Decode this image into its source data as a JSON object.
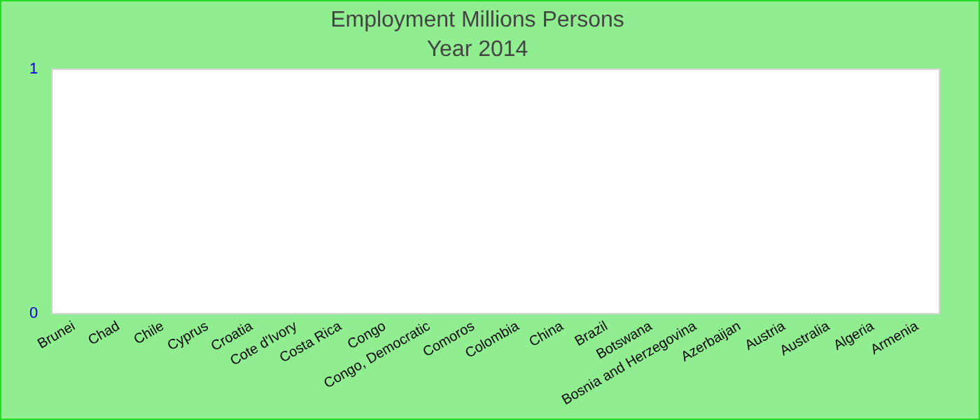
{
  "chart_data": {
    "type": "bar",
    "title": "Employment Millions Persons",
    "subtitle": "Year 2014",
    "categories": [
      "Brunei",
      "Chad",
      "Chile",
      "Cyprus",
      "Croatia",
      "Cote d'Ivory",
      "Costa Rica",
      "Congo",
      "Congo, Democratic",
      "Comoros",
      "Colombia",
      "China",
      "Brazil",
      "Botswana",
      "Bosnia and Herzegovina",
      "Azerbaijan",
      "Austria",
      "Australia",
      "Algeria",
      "Armenia"
    ],
    "values": [
      null,
      null,
      null,
      null,
      null,
      null,
      null,
      null,
      null,
      null,
      null,
      null,
      null,
      null,
      null,
      null,
      null,
      null,
      null,
      null
    ],
    "ylim": [
      0,
      1
    ],
    "yticks": [
      0,
      1
    ],
    "grid": false,
    "legend": false
  }
}
